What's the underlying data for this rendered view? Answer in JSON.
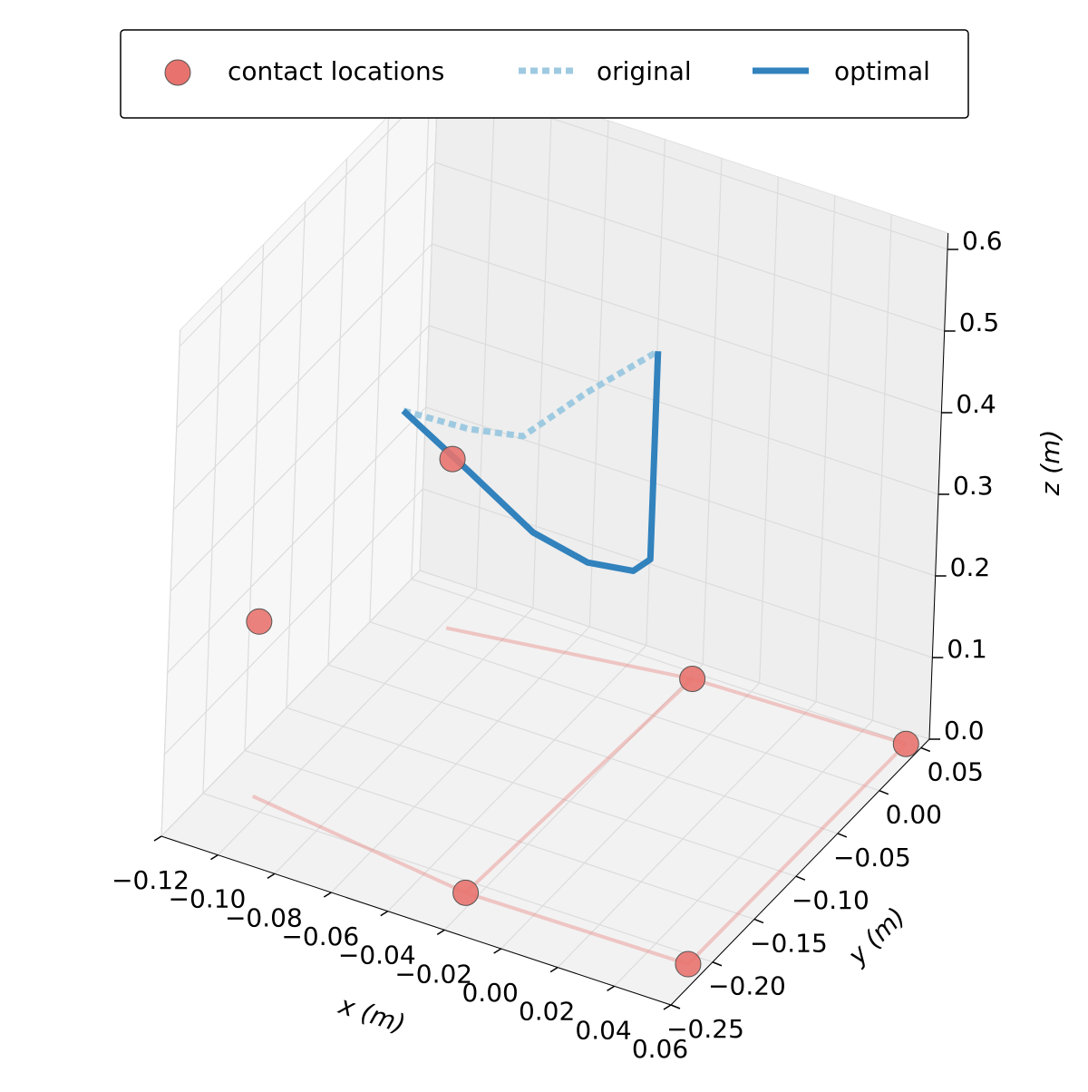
{
  "chart_data": {
    "type": "line3d",
    "legend": "upper center",
    "grid": true,
    "xlabel": "x (m)",
    "ylabel": "y (m)",
    "zlabel": "z (m)",
    "xlim": [
      -0.12,
      0.06
    ],
    "ylim": [
      -0.25,
      0.06
    ],
    "zlim": [
      0,
      0.62
    ],
    "xticks": [
      {
        "value": -0.12,
        "label": "−0.12"
      },
      {
        "value": -0.1,
        "label": "−0.10"
      },
      {
        "value": -0.08,
        "label": "−0.08"
      },
      {
        "value": -0.06,
        "label": "−0.06"
      },
      {
        "value": -0.04,
        "label": "−0.04"
      },
      {
        "value": -0.02,
        "label": "−0.02"
      },
      {
        "value": 0,
        "label": "0.00"
      },
      {
        "value": 0.02,
        "label": "0.02"
      },
      {
        "value": 0.04,
        "label": "0.04"
      },
      {
        "value": 0.06,
        "label": "0.06"
      }
    ],
    "yticks": [
      {
        "value": -0.25,
        "label": "−0.25"
      },
      {
        "value": -0.2,
        "label": "−0.20"
      },
      {
        "value": -0.15,
        "label": "−0.15"
      },
      {
        "value": -0.1,
        "label": "−0.10"
      },
      {
        "value": -0.05,
        "label": "−0.05"
      },
      {
        "value": 0,
        "label": "0.00"
      },
      {
        "value": 0.05,
        "label": "0.05"
      }
    ],
    "zticks": [
      {
        "value": 0,
        "label": "0.0"
      },
      0.1,
      0.2,
      0.3,
      0.4,
      0.5,
      0.6
    ],
    "series": [
      {
        "name": "contact locations",
        "kind": "scatter",
        "color": "#e8736e",
        "x": [
          0.054,
          -0.024,
          0.055,
          -0.019,
          -0.098,
          -0.106
        ],
        "y": [
          -0.209,
          -0.211,
          0.049,
          0.044,
          0.017,
          -0.188
        ],
        "z": [
          0,
          0,
          0,
          0,
          0.207,
          0.214
        ]
      },
      {
        "name": "original",
        "kind": "dotted",
        "color": "#9ecae1",
        "x": [
          -0.0945,
          -0.0682,
          -0.0498,
          -0.038,
          -0.0215
        ],
        "y": [
          -0.059,
          -0.0706,
          -0.0685,
          -0.0334,
          -0.005
        ],
        "z": [
          0.35,
          0.37,
          0.38,
          0.41,
          0.45
        ]
      },
      {
        "name": "optimal",
        "kind": "solid",
        "color": "#3182bd",
        "x": [
          -0.0945,
          -0.0713,
          -0.0486,
          -0.0344,
          -0.0241,
          -0.0215,
          -0.0215
        ],
        "y": [
          -0.059,
          -0.057,
          -0.0556,
          -0.037,
          -0.0166,
          -0.005,
          -0.005
        ],
        "z": [
          0.35,
          0.3,
          0.25,
          0.21,
          0.19,
          0.195,
          0.45
        ]
      }
    ]
  }
}
